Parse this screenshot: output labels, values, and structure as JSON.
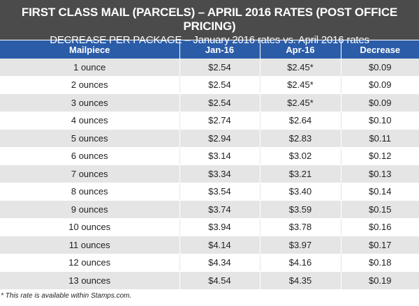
{
  "title": "FIRST CLASS MAIL (PARCELS) – APRIL 2016 RATES (POST OFFICE PRICING)",
  "subtitle": "DECREASE PER PACKAGE – January 2016 rates vs. April 2016 rates",
  "columns": [
    "Mailpiece",
    "Jan-16",
    "Apr-16",
    "Decrease"
  ],
  "rows": [
    [
      "1 ounce",
      "$2.54",
      "$2.45*",
      "$0.09"
    ],
    [
      "2 ounces",
      "$2.54",
      "$2.45*",
      "$0.09"
    ],
    [
      "3 ounces",
      "$2.54",
      "$2.45*",
      "$0.09"
    ],
    [
      "4 ounces",
      "$2.74",
      "$2.64",
      "$0.10"
    ],
    [
      "5 ounces",
      "$2.94",
      "$2.83",
      "$0.11"
    ],
    [
      "6 ounces",
      "$3.14",
      "$3.02",
      "$0.12"
    ],
    [
      "7 ounces",
      "$3.34",
      "$3.21",
      "$0.13"
    ],
    [
      "8 ounces",
      "$3.54",
      "$3.40",
      "$0.14"
    ],
    [
      "9 ounces",
      "$3.74",
      "$3.59",
      "$0.15"
    ],
    [
      "10 ounces",
      "$3.94",
      "$3.78",
      "$0.16"
    ],
    [
      "11 ounces",
      "$4.14",
      "$3.97",
      "$0.17"
    ],
    [
      "12 ounces",
      "$4.34",
      "$4.16",
      "$0.18"
    ],
    [
      "13 ounces",
      "$4.54",
      "$4.35",
      "$0.19"
    ]
  ],
  "footnote": "* This rate is available within Stamps.com."
}
